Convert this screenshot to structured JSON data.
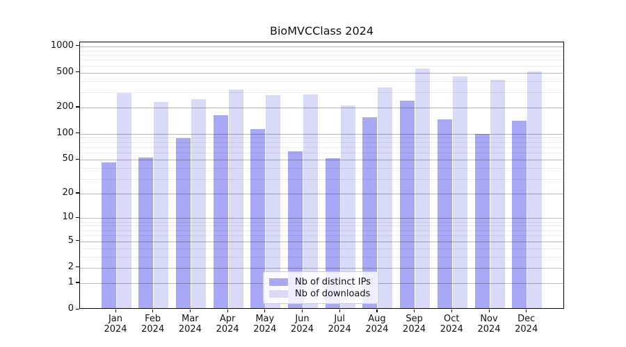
{
  "title": "BioMVCClass 2024",
  "colors": {
    "distinct_ips_bar": "#a8a8f7",
    "downloads_bar": "#d9d9f8",
    "grid_major": "rgba(0,0,0,0.28)",
    "grid_minor": "rgba(0,0,0,0.08)",
    "spine": "#000000",
    "background": "#ffffff",
    "legend_border": "#cccccc"
  },
  "legend": {
    "items": [
      {
        "label": "Nb of distinct IPs",
        "color_key": "distinct_ips_bar"
      },
      {
        "label": "Nb of downloads",
        "color_key": "downloads_bar"
      }
    ]
  },
  "chart_data": {
    "type": "bar",
    "title": "BioMVCClass 2024",
    "categories": [
      "Jan 2024",
      "Feb 2024",
      "Mar 2024",
      "Apr 2024",
      "May 2024",
      "Jun 2024",
      "Jul 2024",
      "Aug 2024",
      "Sep 2024",
      "Oct 2024",
      "Nov 2024",
      "Dec 2024"
    ],
    "series": [
      {
        "name": "Nb of distinct IPs",
        "values": [
          45,
          51,
          86,
          158,
          110,
          60,
          50,
          150,
          232,
          140,
          95,
          135
        ]
      },
      {
        "name": "Nb of downloads",
        "values": [
          285,
          222,
          240,
          310,
          268,
          275,
          205,
          325,
          540,
          435,
          397,
          500
        ]
      }
    ],
    "xlabel": "",
    "ylabel": "",
    "yscale": "log10(y+1)",
    "yticks": [
      0,
      1,
      2,
      5,
      10,
      20,
      50,
      100,
      200,
      500,
      1000
    ],
    "yticks_minor": [
      3,
      4,
      6,
      7,
      8,
      9,
      30,
      40,
      60,
      70,
      80,
      90,
      300,
      400,
      600,
      700,
      800,
      900
    ],
    "ylim": [
      0,
      1117
    ],
    "grid": true,
    "legend_position": "lower center inside"
  }
}
